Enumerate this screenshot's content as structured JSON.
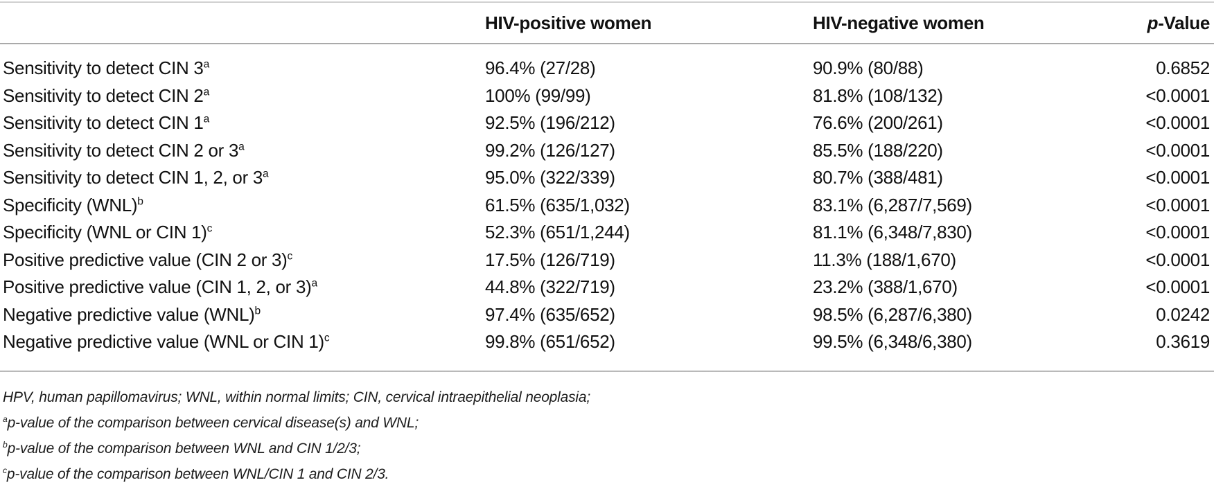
{
  "table": {
    "header": {
      "hiv_positive": "HIV-positive women",
      "hiv_negative": "HIV-negative women",
      "p_value_italic": "p",
      "p_value_rest": "-Value"
    },
    "rows": [
      {
        "label": "Sensitivity to detect CIN 3",
        "marker": "a",
        "hiv_positive": "96.4% (27/28)",
        "hiv_negative": "90.9% (80/88)",
        "p_value": "0.6852"
      },
      {
        "label": "Sensitivity to detect CIN 2",
        "marker": "a",
        "hiv_positive": "100% (99/99)",
        "hiv_negative": "81.8% (108/132)",
        "p_value": "<0.0001"
      },
      {
        "label": "Sensitivity to detect CIN 1",
        "marker": "a",
        "hiv_positive": "92.5% (196/212)",
        "hiv_negative": "76.6% (200/261)",
        "p_value": "<0.0001"
      },
      {
        "label": "Sensitivity to detect CIN 2 or 3",
        "marker": "a",
        "hiv_positive": "99.2% (126/127)",
        "hiv_negative": "85.5% (188/220)",
        "p_value": "<0.0001"
      },
      {
        "label": "Sensitivity to detect CIN 1, 2, or 3",
        "marker": "a",
        "hiv_positive": "95.0% (322/339)",
        "hiv_negative": "80.7% (388/481)",
        "p_value": "<0.0001"
      },
      {
        "label": "Specificity (WNL)",
        "marker": "b",
        "hiv_positive": "61.5% (635/1,032)",
        "hiv_negative": "83.1% (6,287/7,569)",
        "p_value": "<0.0001"
      },
      {
        "label": "Specificity (WNL or CIN 1)",
        "marker": "c",
        "hiv_positive": "52.3% (651/1,244)",
        "hiv_negative": "81.1% (6,348/7,830)",
        "p_value": "<0.0001"
      },
      {
        "label": "Positive predictive value (CIN 2 or 3)",
        "marker": "c",
        "hiv_positive": "17.5% (126/719)",
        "hiv_negative": "11.3% (188/1,670)",
        "p_value": "<0.0001"
      },
      {
        "label": "Positive predictive value (CIN 1, 2, or 3)",
        "marker": "a",
        "hiv_positive": "44.8% (322/719)",
        "hiv_negative": "23.2% (388/1,670)",
        "p_value": "<0.0001"
      },
      {
        "label": "Negative predictive value (WNL)",
        "marker": "b",
        "hiv_positive": "97.4% (635/652)",
        "hiv_negative": "98.5% (6,287/6,380)",
        "p_value": "0.0242"
      },
      {
        "label": "Negative predictive value (WNL or CIN 1)",
        "marker": "c",
        "hiv_positive": "99.8% (651/652)",
        "hiv_negative": "99.5% (6,348/6,380)",
        "p_value": "0.3619"
      }
    ]
  },
  "footnotes": {
    "abbreviations": "HPV, human papillomavirus; WNL, within normal limits; CIN, cervical intraepithelial neoplasia;",
    "notes": [
      {
        "marker": "a",
        "text": "p-value of the comparison between cervical disease(s) and WNL;"
      },
      {
        "marker": "b",
        "text": "p-value of the comparison between WNL and CIN 1/2/3;"
      },
      {
        "marker": "c",
        "text": "p-value of the comparison between WNL/CIN 1 and CIN 2/3."
      }
    ]
  },
  "colors": {
    "text": "#111111",
    "rule_dark": "#8f8f8f",
    "rule_light": "#d2d2d2"
  }
}
